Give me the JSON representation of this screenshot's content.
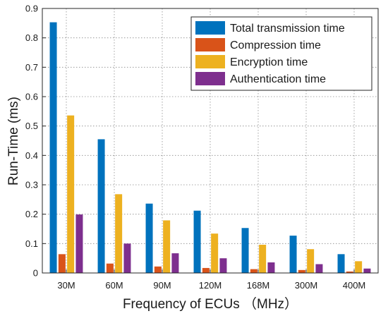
{
  "chart_data": {
    "type": "bar",
    "title": "",
    "xlabel": "Frequency of ECUs  （MHz）",
    "ylabel": "Run-Time (ms)",
    "categories": [
      "30M",
      "60M",
      "90M",
      "120M",
      "168M",
      "300M",
      "400M"
    ],
    "ylim": [
      0,
      0.9
    ],
    "yticks": [
      "0",
      "0.1",
      "0.2",
      "0.3",
      "0.4",
      "0.5",
      "0.6",
      "0.7",
      "0.8",
      "0.9"
    ],
    "grid": true,
    "legend_position": "top-right",
    "series": [
      {
        "name": "Total transmission time",
        "color": "#0072BD",
        "values": [
          0.853,
          0.455,
          0.236,
          0.212,
          0.153,
          0.127,
          0.064
        ]
      },
      {
        "name": "Compression time",
        "color": "#D95319",
        "values": [
          0.064,
          0.032,
          0.022,
          0.017,
          0.013,
          0.01,
          0.005
        ]
      },
      {
        "name": "Encryption time",
        "color": "#EDB120",
        "values": [
          0.536,
          0.268,
          0.179,
          0.134,
          0.096,
          0.081,
          0.04
        ]
      },
      {
        "name": "Authentication time",
        "color": "#7E2F8E",
        "values": [
          0.199,
          0.1,
          0.067,
          0.05,
          0.036,
          0.03,
          0.015
        ]
      }
    ]
  }
}
